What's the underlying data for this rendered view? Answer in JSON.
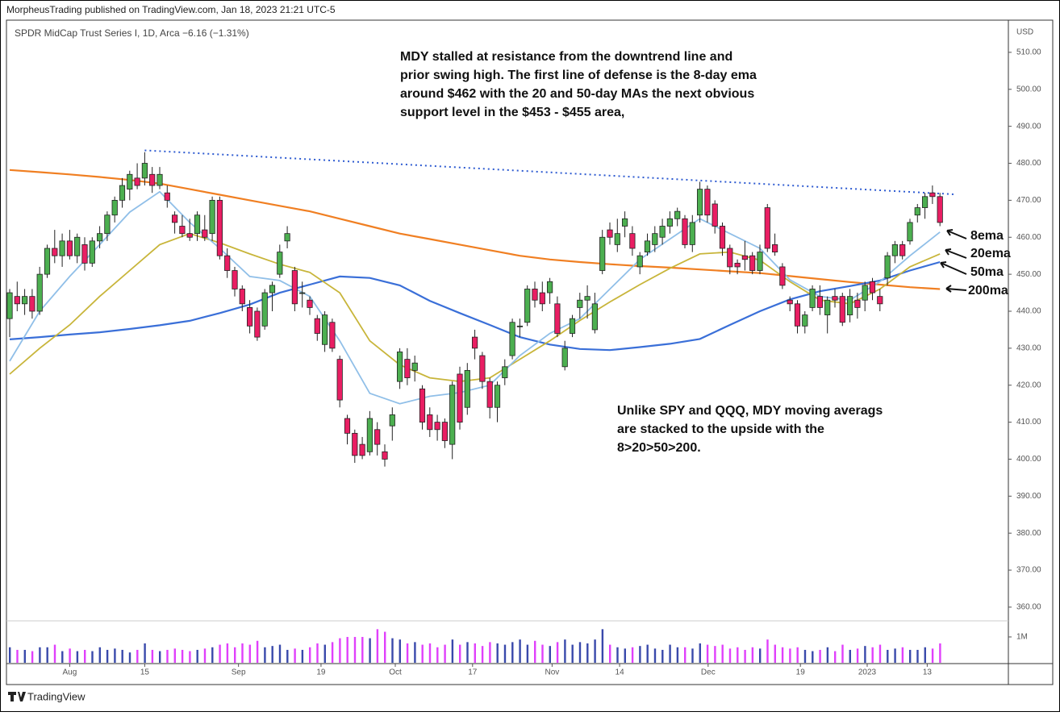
{
  "header": "MorpheusTrading published on TradingView.com, Jan 18, 2023 21:21 UTC-5",
  "footer": "TradingView",
  "chart_data": {
    "type": "candlestick",
    "title": "SPDR MidCap Trust Series I, 1D, Arca",
    "change": "−6.16 (−1.31%)",
    "currency": "USD",
    "xlim": [
      -0.43,
      133.12
    ],
    "xticks": [
      {
        "value": 8,
        "label": "Aug"
      },
      {
        "value": 18,
        "label": "15"
      },
      {
        "value": 30.5,
        "label": "Sep"
      },
      {
        "value": 41.5,
        "label": "19"
      },
      {
        "value": 51.4,
        "label": "Oct"
      },
      {
        "value": 61.7,
        "label": "17"
      },
      {
        "value": 72.3,
        "label": "Nov"
      },
      {
        "value": 81.3,
        "label": "14"
      },
      {
        "value": 93.1,
        "label": "Dec"
      },
      {
        "value": 105.4,
        "label": "19"
      },
      {
        "value": 114.3,
        "label": "2023"
      },
      {
        "value": 122.3,
        "label": "13"
      }
    ],
    "ylim": [
      356.5,
      518.7
    ],
    "yticks": [
      {
        "value": 360,
        "label": "360.00"
      },
      {
        "value": 370,
        "label": "370.00"
      },
      {
        "value": 380,
        "label": "380.00"
      },
      {
        "value": 390,
        "label": "390.00"
      },
      {
        "value": 400,
        "label": "400.00"
      },
      {
        "value": 410,
        "label": "410.00"
      },
      {
        "value": 420,
        "label": "420.00"
      },
      {
        "value": 430,
        "label": "430.00"
      },
      {
        "value": 440,
        "label": "440.00"
      },
      {
        "value": 450,
        "label": "450.00"
      },
      {
        "value": 460,
        "label": "460.00"
      },
      {
        "value": 470,
        "label": "470.00"
      },
      {
        "value": 480,
        "label": "480.00"
      },
      {
        "value": 490,
        "label": "490.00"
      },
      {
        "value": 500,
        "label": "500.00"
      },
      {
        "value": 510,
        "label": "510.00"
      }
    ],
    "up_color": "#4caf50",
    "down_color": "#e91e63",
    "candles": [
      [
        438,
        446,
        433,
        445
      ],
      [
        444,
        448,
        440,
        442
      ],
      [
        442,
        446,
        439,
        444
      ],
      [
        444,
        446,
        438,
        440
      ],
      [
        440,
        452,
        439,
        450
      ],
      [
        450,
        458,
        449,
        457
      ],
      [
        457,
        462,
        453,
        455
      ],
      [
        455,
        461,
        452,
        459
      ],
      [
        459,
        462,
        454,
        455
      ],
      [
        455,
        461,
        453,
        460
      ],
      [
        458,
        460,
        451,
        453
      ],
      [
        453,
        460,
        452,
        459
      ],
      [
        459,
        463,
        457,
        461
      ],
      [
        461,
        467,
        459,
        466
      ],
      [
        466,
        471,
        464,
        470
      ],
      [
        470,
        476,
        468,
        474
      ],
      [
        473,
        478,
        470,
        477
      ],
      [
        476,
        480,
        473,
        474
      ],
      [
        476,
        483,
        474,
        480
      ],
      [
        477,
        479,
        472,
        474
      ],
      [
        474,
        479,
        473,
        477
      ],
      [
        472,
        474,
        468,
        470
      ],
      [
        466,
        467,
        461,
        464
      ],
      [
        463,
        466,
        460,
        461
      ],
      [
        461,
        465,
        459,
        460
      ],
      [
        461,
        467,
        459,
        466
      ],
      [
        462,
        466,
        459,
        460
      ],
      [
        461,
        471,
        459,
        470
      ],
      [
        470,
        471,
        454,
        455
      ],
      [
        455,
        457,
        449,
        451
      ],
      [
        451,
        452,
        444,
        446
      ],
      [
        446,
        447,
        440,
        442
      ],
      [
        441,
        443,
        434,
        436
      ],
      [
        440,
        441,
        432,
        433
      ],
      [
        436,
        446,
        435,
        445
      ],
      [
        445,
        448,
        440,
        447
      ],
      [
        450,
        458,
        449,
        456
      ],
      [
        459,
        463,
        457,
        461
      ],
      [
        451,
        452,
        440,
        442
      ],
      [
        445,
        448,
        441,
        445
      ],
      [
        443,
        444,
        439,
        441
      ],
      [
        438,
        439,
        432,
        434
      ],
      [
        431,
        440,
        429,
        439
      ],
      [
        437,
        438,
        429,
        430
      ],
      [
        427,
        428,
        414,
        416
      ],
      [
        411,
        412,
        404,
        407
      ],
      [
        407,
        408,
        399,
        401
      ],
      [
        404,
        406,
        400,
        401
      ],
      [
        402,
        413,
        401,
        411
      ],
      [
        408,
        410,
        401,
        404
      ],
      [
        402,
        404,
        398,
        400
      ],
      [
        409,
        414,
        405,
        412
      ],
      [
        421,
        430,
        419,
        429
      ],
      [
        427,
        430,
        420,
        422
      ],
      [
        424,
        428,
        421,
        426
      ],
      [
        419,
        420,
        408,
        410
      ],
      [
        412,
        414,
        406,
        408
      ],
      [
        410,
        412,
        405,
        408
      ],
      [
        410,
        411,
        403,
        405
      ],
      [
        404,
        421,
        400,
        420
      ],
      [
        423,
        425,
        408,
        410
      ],
      [
        414,
        426,
        412,
        424
      ],
      [
        433,
        435,
        427,
        430
      ],
      [
        428,
        429,
        419,
        421
      ],
      [
        421,
        422,
        411,
        414
      ],
      [
        414,
        421,
        410,
        420
      ],
      [
        422,
        427,
        420,
        425
      ],
      [
        428,
        438,
        427,
        437
      ],
      [
        436,
        438,
        433,
        436
      ],
      [
        437,
        447,
        436,
        446
      ],
      [
        446,
        448,
        441,
        443
      ],
      [
        445,
        448,
        440,
        442
      ],
      [
        445,
        449,
        442,
        448
      ],
      [
        442,
        444,
        433,
        434
      ],
      [
        425,
        432,
        424,
        430
      ],
      [
        434,
        439,
        433,
        438
      ],
      [
        441,
        445,
        438,
        443
      ],
      [
        443,
        447,
        438,
        444
      ],
      [
        435,
        445,
        434,
        442
      ],
      [
        451,
        462,
        450,
        460
      ],
      [
        462,
        464,
        458,
        460
      ],
      [
        458,
        465,
        456,
        461
      ],
      [
        463,
        467,
        460,
        465
      ],
      [
        461,
        463,
        455,
        457
      ],
      [
        452,
        456,
        450,
        455
      ],
      [
        456,
        461,
        455,
        459
      ],
      [
        458,
        463,
        456,
        461
      ],
      [
        460,
        465,
        458,
        463
      ],
      [
        463,
        467,
        461,
        465
      ],
      [
        465,
        468,
        463,
        467
      ],
      [
        465,
        466,
        457,
        458
      ],
      [
        458,
        466,
        456,
        464
      ],
      [
        466,
        475,
        464,
        473
      ],
      [
        473,
        474,
        464,
        466
      ],
      [
        469,
        470,
        461,
        463
      ],
      [
        463,
        464,
        455,
        457
      ],
      [
        457,
        458,
        450,
        452
      ],
      [
        453,
        454,
        450,
        452
      ],
      [
        455,
        459,
        451,
        454
      ],
      [
        455,
        456,
        450,
        451
      ],
      [
        451,
        458,
        450,
        456
      ],
      [
        468,
        469,
        456,
        457
      ],
      [
        458,
        461,
        455,
        456
      ],
      [
        452,
        453,
        446,
        447
      ],
      [
        443,
        444,
        440,
        442
      ],
      [
        442,
        443,
        434,
        436
      ],
      [
        436,
        440,
        434,
        439
      ],
      [
        441,
        447,
        440,
        446
      ],
      [
        444,
        447,
        439,
        441
      ],
      [
        439,
        444,
        434,
        443
      ],
      [
        444,
        446,
        441,
        443
      ],
      [
        444,
        445,
        436,
        437
      ],
      [
        439,
        446,
        437,
        444
      ],
      [
        443,
        445,
        438,
        441
      ],
      [
        443,
        448,
        440,
        447
      ],
      [
        448,
        449,
        443,
        445
      ],
      [
        444,
        446,
        440,
        442
      ],
      [
        449,
        456,
        447,
        455
      ],
      [
        455,
        459,
        453,
        458
      ],
      [
        458,
        459,
        454,
        455
      ],
      [
        459,
        465,
        458,
        464
      ],
      [
        466,
        469,
        464,
        468
      ],
      [
        468,
        472,
        465,
        471
      ],
      [
        472,
        474,
        469,
        471
      ],
      [
        471,
        472,
        463,
        464
      ]
    ],
    "volume": [
      0.6,
      0.5,
      0.5,
      0.45,
      0.6,
      0.6,
      0.7,
      0.45,
      0.55,
      0.45,
      0.5,
      0.45,
      0.6,
      0.5,
      0.55,
      0.5,
      0.4,
      0.5,
      0.75,
      0.5,
      0.45,
      0.5,
      0.55,
      0.5,
      0.45,
      0.5,
      0.55,
      0.6,
      0.7,
      0.75,
      0.6,
      0.75,
      0.7,
      0.85,
      0.6,
      0.65,
      0.7,
      0.5,
      0.55,
      0.5,
      0.6,
      0.75,
      0.7,
      0.8,
      0.95,
      1.0,
      1.0,
      1.0,
      0.95,
      1.3,
      1.2,
      0.95,
      0.9,
      0.75,
      0.8,
      0.7,
      0.75,
      0.6,
      0.7,
      0.9,
      0.7,
      0.8,
      0.75,
      0.65,
      0.8,
      0.75,
      0.7,
      0.8,
      0.9,
      0.7,
      0.85,
      0.7,
      0.65,
      0.8,
      0.9,
      0.7,
      0.8,
      0.75,
      0.9,
      1.3,
      0.7,
      0.6,
      0.55,
      0.6,
      0.65,
      0.7,
      0.55,
      0.5,
      0.7,
      0.6,
      0.6,
      0.55,
      0.75,
      0.7,
      0.65,
      0.7,
      0.55,
      0.6,
      0.5,
      0.6,
      0.55,
      0.9,
      0.7,
      0.6,
      0.55,
      0.6,
      0.5,
      0.45,
      0.5,
      0.6,
      0.45,
      0.7,
      0.5,
      0.55,
      0.65,
      0.6,
      0.7,
      0.5,
      0.55,
      0.6,
      0.5,
      0.5,
      0.6,
      0.55,
      0.75
    ],
    "vlim": [
      0,
      1.56
    ],
    "vticks": [
      {
        "value": 1,
        "label": "1M"
      }
    ],
    "ma_x": [
      0,
      4,
      8,
      12,
      16,
      20,
      24,
      28,
      32,
      36,
      40,
      44,
      48,
      52,
      56,
      60,
      64,
      68,
      72,
      76,
      80,
      84,
      88,
      92,
      96,
      100,
      104,
      108,
      112,
      116,
      120,
      124
    ],
    "series": [
      {
        "name": "200ma",
        "color": "#f07f22",
        "width": 2.2,
        "values": [
          478.2,
          477.6,
          477,
          476.3,
          475.5,
          474.5,
          473,
          471.5,
          470,
          468.5,
          467,
          465,
          463,
          461,
          459.5,
          458,
          456.5,
          455,
          454,
          453.3,
          452.7,
          452.2,
          451.8,
          451.3,
          450.8,
          450.3,
          449.5,
          448.7,
          447.9,
          447.2,
          446.5,
          446
        ]
      },
      {
        "name": "50ma",
        "color": "#3a6fd8",
        "width": 2.2,
        "values": [
          432.4,
          433,
          433.7,
          434.3,
          435.2,
          436.2,
          437.4,
          439.5,
          441.8,
          445,
          447.2,
          449.4,
          449,
          447,
          442.8,
          439.5,
          436.3,
          433,
          431,
          429.8,
          429.5,
          430.3,
          431.2,
          432.5,
          436.3,
          440,
          443.2,
          445.4,
          446.8,
          448.3,
          451,
          453.3
        ]
      },
      {
        "name": "20ema",
        "color": "#c8b53a",
        "width": 1.8,
        "values": [
          423,
          430,
          436.3,
          444,
          451,
          458,
          461,
          458.5,
          455.5,
          452.7,
          450.5,
          445,
          432,
          425.5,
          422,
          421,
          422,
          427,
          432,
          437.5,
          442.5,
          447.2,
          451.6,
          455.5,
          456,
          453.8,
          448,
          443,
          442,
          446,
          452,
          455.5
        ]
      },
      {
        "name": "8ema",
        "color": "#90bfe8",
        "width": 1.8,
        "values": [
          426.5,
          440,
          449.4,
          458,
          466.8,
          472.3,
          464,
          457,
          449.4,
          448.3,
          444,
          432,
          417.8,
          415,
          417,
          418,
          420,
          428,
          434,
          438,
          446,
          454,
          459.5,
          465,
          461,
          457,
          448.5,
          444,
          443,
          448,
          455,
          461.4
        ]
      }
    ],
    "trendline": {
      "x": [
        18,
        126
      ],
      "values": [
        483.5,
        471.6
      ],
      "color": "#2e5bd1"
    },
    "annotations": {
      "top": [
        "MDY stalled at resistance from the downtrend line and",
        "prior swing high.  The first line of defense is the 8-day ema",
        "around $462 with the 20 and 50-day MAs the next obvious",
        "support level in the $453 - $455 area,"
      ],
      "bottom": [
        "Unlike SPY and QQQ, MDY moving averags",
        "are stacked to the upside with the",
        "8>20>50>200."
      ]
    }
  }
}
